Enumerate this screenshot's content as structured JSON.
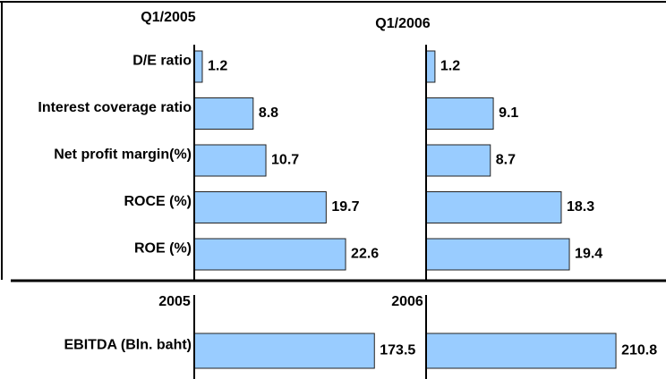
{
  "chart_data": [
    {
      "type": "bar",
      "orientation": "horizontal",
      "title": "Q1/2005",
      "categories": [
        "D/E ratio",
        "Interest coverage ratio",
        "Net profit margin(%)",
        "ROCE (%)",
        "ROE (%)"
      ],
      "values": [
        1.2,
        8.8,
        10.7,
        19.7,
        22.6
      ],
      "color": "#99ccff"
    },
    {
      "type": "bar",
      "orientation": "horizontal",
      "title": "Q1/2006",
      "values": [
        1.2,
        9.1,
        8.7,
        18.3,
        19.4
      ],
      "color": "#99ccff"
    },
    {
      "type": "bar",
      "orientation": "horizontal",
      "title": "2005",
      "categories": [
        "EBITDA (Bln. baht)"
      ],
      "values": [
        173.5
      ],
      "color": "#99ccff"
    },
    {
      "type": "bar",
      "orientation": "horizontal",
      "title": "2006",
      "values": [
        210.8
      ],
      "color": "#99ccff"
    }
  ]
}
